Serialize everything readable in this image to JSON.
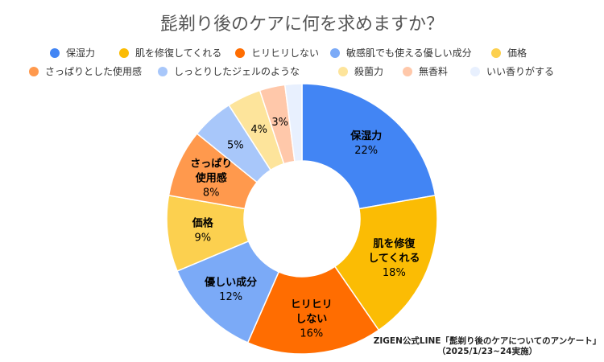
{
  "chart_data": {
    "type": "pie",
    "variant": "donut",
    "title": "髭剃り後のケアに何を求めますか？",
    "start": "top, clockwise",
    "legend_position": "top",
    "slices": [
      {
        "legend": "保湿力",
        "label": "保湿力",
        "value": 22,
        "value_label": "22%",
        "color": "#4285F4",
        "label_color": "#000000"
      },
      {
        "legend": "肌を修復してくれる",
        "label": "肌を修復\nしてくれる",
        "value": 18,
        "value_label": "18%",
        "color": "#FBBC04",
        "label_color": "#000000"
      },
      {
        "legend": "ヒリヒリしない",
        "label": "ヒリヒリ\nしない",
        "value": 16,
        "value_label": "16%",
        "color": "#FF6D01",
        "label_color": "#000000"
      },
      {
        "legend": "敏感肌でも使える優しい成分",
        "label": "優しい成分",
        "value": 12,
        "value_label": "12%",
        "color": "#7BAAF7",
        "label_color": "#000000"
      },
      {
        "legend": "価格",
        "label": "価格",
        "value": 9,
        "value_label": "9%",
        "color": "#FCD04F",
        "label_color": "#000000"
      },
      {
        "legend": "さっぱりとした使用感",
        "label": "さっぱり\n使用感",
        "value": 8,
        "value_label": "8%",
        "color": "#FF994D",
        "label_color": "#000000"
      },
      {
        "legend": "しっとりしたジェルのような",
        "label": "",
        "value": 5,
        "value_label": "5%",
        "color": "#A8C7FA",
        "label_color": "#000000"
      },
      {
        "legend": "殺菌力",
        "label": "",
        "value": 4,
        "value_label": "4%",
        "color": "#FDE49B",
        "label_color": "#000000"
      },
      {
        "legend": "無香料",
        "label": "",
        "value": 3,
        "value_label": "3%",
        "color": "#FFC8AA",
        "label_color": "#000000"
      },
      {
        "legend": "いい香りがする",
        "label": "",
        "value": 2,
        "value_label": "",
        "color": "#E8F0FE",
        "label_color": "#000000"
      }
    ]
  },
  "source": {
    "line1": "ZIGEN公式LINE「髭剃り後のケアについてのアンケート」",
    "line2": "（2025/1/23~24実施）"
  }
}
